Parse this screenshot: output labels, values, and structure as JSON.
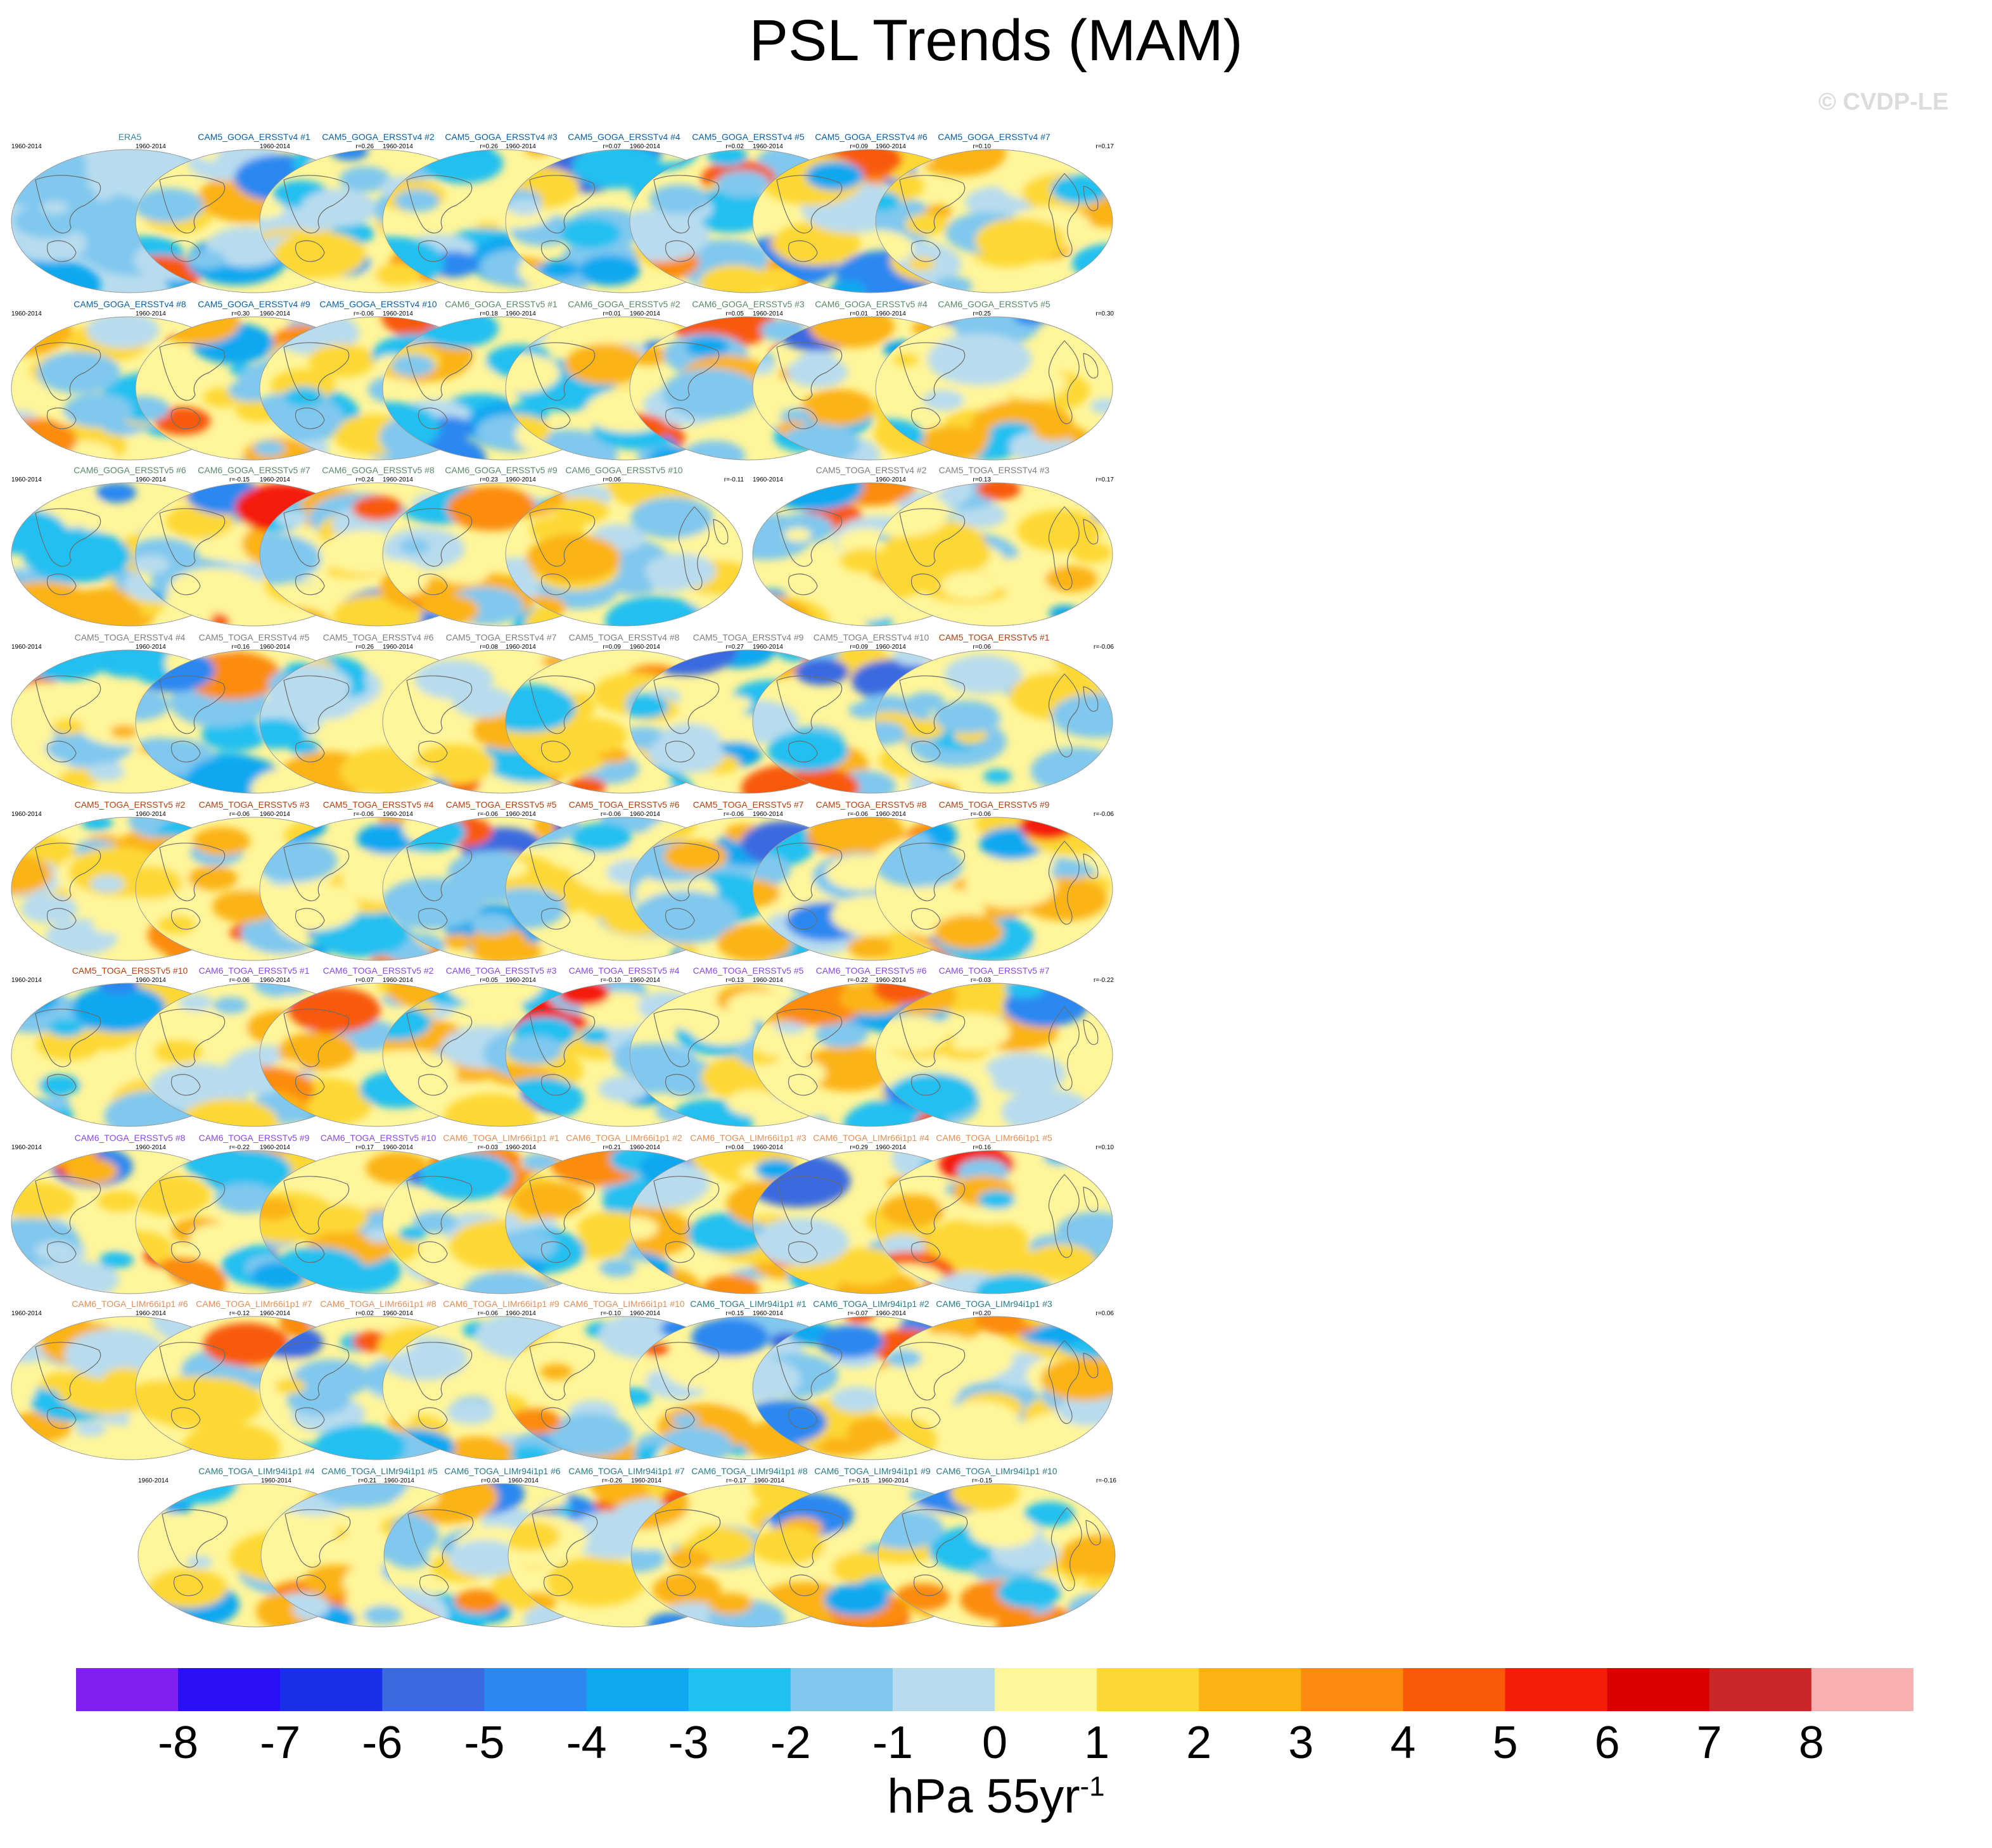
{
  "title": "PSL Trends (MAM)",
  "watermark": "© CVDP-LE",
  "colors": {
    "label_obs": "#3b86a0",
    "CAM5_GOGA_ERSSTv4": "#0a5fa8",
    "CAM6_GOGA_ERSSTv5": "#5a8a6a",
    "CAM5_TOGA_ERSSTv4": "#7f7f7f",
    "CAM5_TOGA_ERSSTv5": "#b4420f",
    "CAM6_TOGA_ERSSTv5": "#8a4ae0",
    "CAM6_TOGA_LIMr66i1p1": "#e0905a",
    "CAM6_TOGA_LIMr94i1p1": "#2a7a8a"
  },
  "chart_data": {
    "type": "heatmap",
    "title": "PSL Trends (MAM)",
    "period": "1960-2014",
    "colorbar": {
      "label_main": "hPa 55yr",
      "label_sup": "-1",
      "levels": [
        -8,
        -7,
        -6,
        -5,
        -4,
        -3,
        -2,
        -1,
        0,
        1,
        2,
        3,
        4,
        5,
        6,
        7,
        8
      ],
      "colors": [
        "#8020f0",
        "#2a10f5",
        "#1a30e8",
        "#3a6ae0",
        "#2a88f0",
        "#10a8f0",
        "#20c0f0",
        "#80c8ee",
        "#b8dcee",
        "#fff59a",
        "#fdd835",
        "#fbb315",
        "#fb8c10",
        "#f85a08",
        "#f41e08",
        "#d80000",
        "#c82828",
        "#f8b0b0"
      ]
    },
    "panels": [
      {
        "label": "ERA5",
        "group": "label_obs",
        "period": "1960-2014",
        "r": ""
      },
      {
        "label": "CAM5_GOGA_ERSSTv4 #1",
        "group": "CAM5_GOGA_ERSSTv4",
        "period": "1960-2014",
        "r": "r=0.26"
      },
      {
        "label": "CAM5_GOGA_ERSSTv4 #2",
        "group": "CAM5_GOGA_ERSSTv4",
        "period": "1960-2014",
        "r": "r=0.26"
      },
      {
        "label": "CAM5_GOGA_ERSSTv4 #3",
        "group": "CAM5_GOGA_ERSSTv4",
        "period": "1960-2014",
        "r": "r=0.07"
      },
      {
        "label": "CAM5_GOGA_ERSSTv4 #4",
        "group": "CAM5_GOGA_ERSSTv4",
        "period": "1960-2014",
        "r": "r=0.02"
      },
      {
        "label": "CAM5_GOGA_ERSSTv4 #5",
        "group": "CAM5_GOGA_ERSSTv4",
        "period": "1960-2014",
        "r": "r=0.09"
      },
      {
        "label": "CAM5_GOGA_ERSSTv4 #6",
        "group": "CAM5_GOGA_ERSSTv4",
        "period": "1960-2014",
        "r": "r=0.10"
      },
      {
        "label": "CAM5_GOGA_ERSSTv4 #7",
        "group": "CAM5_GOGA_ERSSTv4",
        "period": "1960-2014",
        "r": "r=0.17"
      },
      {
        "label": "CAM5_GOGA_ERSSTv4 #8",
        "group": "CAM5_GOGA_ERSSTv4",
        "period": "1960-2014",
        "r": "r=0.30"
      },
      {
        "label": "CAM5_GOGA_ERSSTv4 #9",
        "group": "CAM5_GOGA_ERSSTv4",
        "period": "1960-2014",
        "r": "r=-0.06"
      },
      {
        "label": "CAM5_GOGA_ERSSTv4 #10",
        "group": "CAM5_GOGA_ERSSTv4",
        "period": "1960-2014",
        "r": "r=0.18"
      },
      {
        "label": "CAM6_GOGA_ERSSTv5 #1",
        "group": "CAM6_GOGA_ERSSTv5",
        "period": "1960-2014",
        "r": "r=0.01"
      },
      {
        "label": "CAM6_GOGA_ERSSTv5 #2",
        "group": "CAM6_GOGA_ERSSTv5",
        "period": "1960-2014",
        "r": "r=0.05"
      },
      {
        "label": "CAM6_GOGA_ERSSTv5 #3",
        "group": "CAM6_GOGA_ERSSTv5",
        "period": "1960-2014",
        "r": "r=0.01"
      },
      {
        "label": "CAM6_GOGA_ERSSTv5 #4",
        "group": "CAM6_GOGA_ERSSTv5",
        "period": "1960-2014",
        "r": "r=0.25"
      },
      {
        "label": "CAM6_GOGA_ERSSTv5 #5",
        "group": "CAM6_GOGA_ERSSTv5",
        "period": "1960-2014",
        "r": "r=0.30"
      },
      {
        "label": "CAM6_GOGA_ERSSTv5 #6",
        "group": "CAM6_GOGA_ERSSTv5",
        "period": "1960-2014",
        "r": "r=-0.15"
      },
      {
        "label": "CAM6_GOGA_ERSSTv5 #7",
        "group": "CAM6_GOGA_ERSSTv5",
        "period": "1960-2014",
        "r": "r=0.24"
      },
      {
        "label": "CAM6_GOGA_ERSSTv5 #8",
        "group": "CAM6_GOGA_ERSSTv5",
        "period": "1960-2014",
        "r": "r=0.23"
      },
      {
        "label": "CAM6_GOGA_ERSSTv5 #9",
        "group": "CAM6_GOGA_ERSSTv5",
        "period": "1960-2014",
        "r": "r=0.06"
      },
      {
        "label": "CAM6_GOGA_ERSSTv5 #10",
        "group": "CAM6_GOGA_ERSSTv5",
        "period": "1960-2014",
        "r": "r=-0.11"
      },
      null,
      {
        "label": "CAM5_TOGA_ERSSTv4 #2",
        "group": "CAM5_TOGA_ERSSTv4",
        "period": "1960-2014",
        "r": "r=0.13"
      },
      {
        "label": "CAM5_TOGA_ERSSTv4 #3",
        "group": "CAM5_TOGA_ERSSTv4",
        "period": "1960-2014",
        "r": "r=0.17"
      },
      {
        "label": "CAM5_TOGA_ERSSTv4 #4",
        "group": "CAM5_TOGA_ERSSTv4",
        "period": "1960-2014",
        "r": "r=0.16"
      },
      {
        "label": "CAM5_TOGA_ERSSTv4 #5",
        "group": "CAM5_TOGA_ERSSTv4",
        "period": "1960-2014",
        "r": "r=0.26"
      },
      {
        "label": "CAM5_TOGA_ERSSTv4 #6",
        "group": "CAM5_TOGA_ERSSTv4",
        "period": "1960-2014",
        "r": "r=0.08"
      },
      {
        "label": "CAM5_TOGA_ERSSTv4 #7",
        "group": "CAM5_TOGA_ERSSTv4",
        "period": "1960-2014",
        "r": "r=0.09"
      },
      {
        "label": "CAM5_TOGA_ERSSTv4 #8",
        "group": "CAM5_TOGA_ERSSTv4",
        "period": "1960-2014",
        "r": "r=0.27"
      },
      {
        "label": "CAM5_TOGA_ERSSTv4 #9",
        "group": "CAM5_TOGA_ERSSTv4",
        "period": "1960-2014",
        "r": "r=0.09"
      },
      {
        "label": "CAM5_TOGA_ERSSTv4 #10",
        "group": "CAM5_TOGA_ERSSTv4",
        "period": "1960-2014",
        "r": "r=0.06"
      },
      {
        "label": "CAM5_TOGA_ERSSTv5 #1",
        "group": "CAM5_TOGA_ERSSTv5",
        "period": "1960-2014",
        "r": "r=-0.06"
      },
      {
        "label": "CAM5_TOGA_ERSSTv5 #2",
        "group": "CAM5_TOGA_ERSSTv5",
        "period": "1960-2014",
        "r": "r=-0.06"
      },
      {
        "label": "CAM5_TOGA_ERSSTv5 #3",
        "group": "CAM5_TOGA_ERSSTv5",
        "period": "1960-2014",
        "r": "r=-0.06"
      },
      {
        "label": "CAM5_TOGA_ERSSTv5 #4",
        "group": "CAM5_TOGA_ERSSTv5",
        "period": "1960-2014",
        "r": "r=-0.06"
      },
      {
        "label": "CAM5_TOGA_ERSSTv5 #5",
        "group": "CAM5_TOGA_ERSSTv5",
        "period": "1960-2014",
        "r": "r=-0.06"
      },
      {
        "label": "CAM5_TOGA_ERSSTv5 #6",
        "group": "CAM5_TOGA_ERSSTv5",
        "period": "1960-2014",
        "r": "r=-0.06"
      },
      {
        "label": "CAM5_TOGA_ERSSTv5 #7",
        "group": "CAM5_TOGA_ERSSTv5",
        "period": "1960-2014",
        "r": "r=-0.06"
      },
      {
        "label": "CAM5_TOGA_ERSSTv5 #8",
        "group": "CAM5_TOGA_ERSSTv5",
        "period": "1960-2014",
        "r": "r=-0.06"
      },
      {
        "label": "CAM5_TOGA_ERSSTv5 #9",
        "group": "CAM5_TOGA_ERSSTv5",
        "period": "1960-2014",
        "r": "r=-0.06"
      },
      {
        "label": "CAM5_TOGA_ERSSTv5 #10",
        "group": "CAM5_TOGA_ERSSTv5",
        "period": "1960-2014",
        "r": "r=-0.06"
      },
      {
        "label": "CAM6_TOGA_ERSSTv5 #1",
        "group": "CAM6_TOGA_ERSSTv5",
        "period": "1960-2014",
        "r": "r=0.07"
      },
      {
        "label": "CAM6_TOGA_ERSSTv5 #2",
        "group": "CAM6_TOGA_ERSSTv5",
        "period": "1960-2014",
        "r": "r=0.05"
      },
      {
        "label": "CAM6_TOGA_ERSSTv5 #3",
        "group": "CAM6_TOGA_ERSSTv5",
        "period": "1960-2014",
        "r": "r=-0.10"
      },
      {
        "label": "CAM6_TOGA_ERSSTv5 #4",
        "group": "CAM6_TOGA_ERSSTv5",
        "period": "1960-2014",
        "r": "r=0.13"
      },
      {
        "label": "CAM6_TOGA_ERSSTv5 #5",
        "group": "CAM6_TOGA_ERSSTv5",
        "period": "1960-2014",
        "r": "r=-0.22"
      },
      {
        "label": "CAM6_TOGA_ERSSTv5 #6",
        "group": "CAM6_TOGA_ERSSTv5",
        "period": "1960-2014",
        "r": "r=-0.03"
      },
      {
        "label": "CAM6_TOGA_ERSSTv5 #7",
        "group": "CAM6_TOGA_ERSSTv5",
        "period": "1960-2014",
        "r": "r=-0.22"
      },
      {
        "label": "CAM6_TOGA_ERSSTv5 #8",
        "group": "CAM6_TOGA_ERSSTv5",
        "period": "1960-2014",
        "r": "r=-0.22"
      },
      {
        "label": "CAM6_TOGA_ERSSTv5 #9",
        "group": "CAM6_TOGA_ERSSTv5",
        "period": "1960-2014",
        "r": "r=0.17"
      },
      {
        "label": "CAM6_TOGA_ERSSTv5 #10",
        "group": "CAM6_TOGA_ERSSTv5",
        "period": "1960-2014",
        "r": "r=-0.03"
      },
      {
        "label": "CAM6_TOGA_LIMr66i1p1 #1",
        "group": "CAM6_TOGA_LIMr66i1p1",
        "period": "1960-2014",
        "r": "r=0.21"
      },
      {
        "label": "CAM6_TOGA_LIMr66i1p1 #2",
        "group": "CAM6_TOGA_LIMr66i1p1",
        "period": "1960-2014",
        "r": "r=0.04"
      },
      {
        "label": "CAM6_TOGA_LIMr66i1p1 #3",
        "group": "CAM6_TOGA_LIMr66i1p1",
        "period": "1960-2014",
        "r": "r=0.29"
      },
      {
        "label": "CAM6_TOGA_LIMr66i1p1 #4",
        "group": "CAM6_TOGA_LIMr66i1p1",
        "period": "1960-2014",
        "r": "r=0.16"
      },
      {
        "label": "CAM6_TOGA_LIMr66i1p1 #5",
        "group": "CAM6_TOGA_LIMr66i1p1",
        "period": "1960-2014",
        "r": "r=0.10"
      },
      {
        "label": "CAM6_TOGA_LIMr66i1p1 #6",
        "group": "CAM6_TOGA_LIMr66i1p1",
        "period": "1960-2014",
        "r": "r=-0.12"
      },
      {
        "label": "CAM6_TOGA_LIMr66i1p1 #7",
        "group": "CAM6_TOGA_LIMr66i1p1",
        "period": "1960-2014",
        "r": "r=0.02"
      },
      {
        "label": "CAM6_TOGA_LIMr66i1p1 #8",
        "group": "CAM6_TOGA_LIMr66i1p1",
        "period": "1960-2014",
        "r": "r=-0.06"
      },
      {
        "label": "CAM6_TOGA_LIMr66i1p1 #9",
        "group": "CAM6_TOGA_LIMr66i1p1",
        "period": "1960-2014",
        "r": "r=-0.10"
      },
      {
        "label": "CAM6_TOGA_LIMr66i1p1 #10",
        "group": "CAM6_TOGA_LIMr66i1p1",
        "period": "1960-2014",
        "r": "r=0.15"
      },
      {
        "label": "CAM6_TOGA_LIMr94i1p1 #1",
        "group": "CAM6_TOGA_LIMr94i1p1",
        "period": "1960-2014",
        "r": "r=-0.07"
      },
      {
        "label": "CAM6_TOGA_LIMr94i1p1 #2",
        "group": "CAM6_TOGA_LIMr94i1p1",
        "period": "1960-2014",
        "r": "r=0.20"
      },
      {
        "label": "CAM6_TOGA_LIMr94i1p1 #3",
        "group": "CAM6_TOGA_LIMr94i1p1",
        "period": "1960-2014",
        "r": "r=0.06"
      },
      {
        "label": "CAM6_TOGA_LIMr94i1p1 #4",
        "group": "CAM6_TOGA_LIMr94i1p1",
        "period": "1960-2014",
        "r": "r=0.21"
      },
      {
        "label": "CAM6_TOGA_LIMr94i1p1 #5",
        "group": "CAM6_TOGA_LIMr94i1p1",
        "period": "1960-2014",
        "r": "r=0.04"
      },
      {
        "label": "CAM6_TOGA_LIMr94i1p1 #6",
        "group": "CAM6_TOGA_LIMr94i1p1",
        "period": "1960-2014",
        "r": "r=-0.26"
      },
      {
        "label": "CAM6_TOGA_LIMr94i1p1 #7",
        "group": "CAM6_TOGA_LIMr94i1p1",
        "period": "1960-2014",
        "r": "r=-0.17"
      },
      {
        "label": "CAM6_TOGA_LIMr94i1p1 #8",
        "group": "CAM6_TOGA_LIMr94i1p1",
        "period": "1960-2014",
        "r": "r=-0.15"
      },
      {
        "label": "CAM6_TOGA_LIMr94i1p1 #9",
        "group": "CAM6_TOGA_LIMr94i1p1",
        "period": "1960-2014",
        "r": "r=-0.15"
      },
      {
        "label": "CAM6_TOGA_LIMr94i1p1 #10",
        "group": "CAM6_TOGA_LIMr94i1p1",
        "period": "1960-2014",
        "r": "r=-0.16"
      }
    ]
  }
}
